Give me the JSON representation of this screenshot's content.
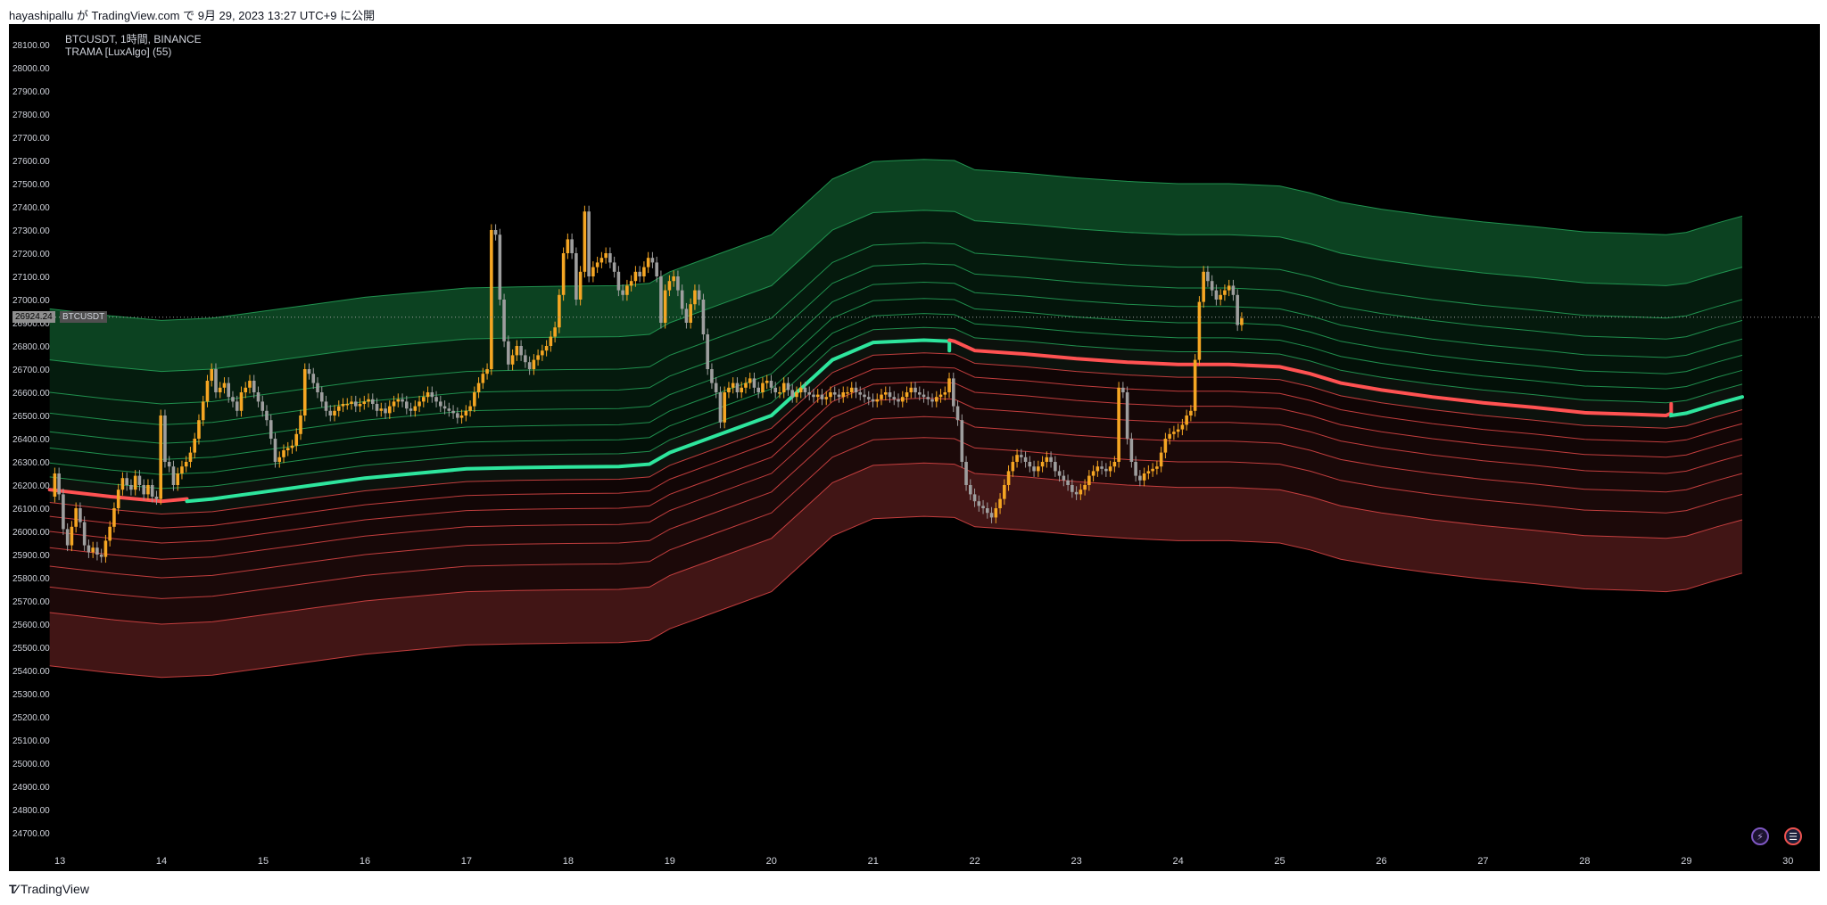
{
  "header": {
    "published": "hayashipallu が TradingView.com で 9月 29, 2023 13:27 UTC+9 に公開"
  },
  "legend": {
    "symbol_line": "BTCUSDT, 1時間, BINANCE",
    "indicator_line": "TRAMA [LuxAlgo] (55)"
  },
  "price_tag": {
    "value": "26924.24",
    "symbol": "BTCUSDT"
  },
  "footer": {
    "brand": "TradingView"
  },
  "badges": {
    "flash_icon": "lightning-icon",
    "flag_icon": "us-flag-icon"
  },
  "colors": {
    "background": "#000000",
    "text": "#d1d4dc",
    "candle_up": "#f5a623",
    "candle_down": "#9e9e9e",
    "trend_bull": "#2ee59d",
    "trend_bear": "#ff5252",
    "band_bull": "#26a65b",
    "band_bear": "#e04848",
    "fill_bull": "#0e4d27",
    "fill_bear": "#4c1919"
  },
  "chart_data": {
    "type": "line",
    "title": "BTCUSDT, 1時間, BINANCE",
    "indicator": "TRAMA [LuxAlgo] (55)",
    "ylim": [
      24650,
      28150
    ],
    "yticks": [
      24700,
      24800,
      24900,
      25000,
      25100,
      25200,
      25300,
      25400,
      25500,
      25600,
      25700,
      25800,
      25900,
      26000,
      26100,
      26200,
      26300,
      26400,
      26500,
      26600,
      26700,
      26800,
      26900,
      27000,
      27100,
      27200,
      27300,
      27400,
      27500,
      27600,
      27700,
      27800,
      27900,
      28000,
      28100
    ],
    "xlim": [
      12.85,
      30.05
    ],
    "xticks": [
      "13",
      "14",
      "15",
      "16",
      "17",
      "18",
      "19",
      "20",
      "21",
      "22",
      "23",
      "24",
      "25",
      "26",
      "27",
      "28",
      "29",
      "30"
    ],
    "last_price": 26924.24,
    "trama": {
      "x": [
        12.9,
        13.5,
        14.0,
        14.5,
        15.0,
        15.5,
        16.0,
        16.5,
        17.0,
        17.5,
        18.0,
        18.5,
        18.8,
        19.0,
        19.5,
        20.0,
        20.3,
        20.6,
        21.0,
        21.5,
        21.8,
        22.0,
        22.5,
        23.0,
        23.5,
        24.0,
        24.5,
        25.0,
        25.3,
        25.6,
        26.0,
        26.5,
        27.0,
        27.5,
        28.0,
        28.5,
        28.8,
        29.0,
        29.3,
        29.55
      ],
      "y": [
        26180,
        26150,
        26130,
        26140,
        26170,
        26200,
        26230,
        26250,
        26270,
        26275,
        26278,
        26280,
        26290,
        26340,
        26420,
        26500,
        26620,
        26740,
        26815,
        26825,
        26820,
        26780,
        26765,
        26745,
        26730,
        26720,
        26720,
        26710,
        26680,
        26640,
        26610,
        26580,
        26555,
        26535,
        26512,
        26505,
        26500,
        26510,
        26550,
        26580
      ],
      "bull_from": 14.25,
      "bear_from": 21.75,
      "bull_again_from": 28.85
    },
    "band_offsets": [
      -760,
      -530,
      -420,
      -330,
      -250,
      -180,
      -115,
      -55,
      55,
      115,
      180,
      250,
      330,
      420,
      560,
      780
    ],
    "candles": {
      "x_start": 12.95,
      "x_step": 0.0417,
      "close": [
        26250,
        26160,
        26010,
        25940,
        26020,
        26100,
        26040,
        25940,
        25910,
        25930,
        25900,
        25890,
        25960,
        26020,
        26100,
        26180,
        26230,
        26200,
        26180,
        26240,
        26200,
        26160,
        26200,
        26150,
        26140,
        26500,
        26300,
        26280,
        26200,
        26250,
        26280,
        26300,
        26340,
        26400,
        26480,
        26560,
        26650,
        26700,
        26600,
        26620,
        26640,
        26580,
        26560,
        26520,
        26600,
        26620,
        26650,
        26600,
        26560,
        26520,
        26480,
        26400,
        26300,
        26320,
        26350,
        26360,
        26370,
        26420,
        26500,
        26700,
        26680,
        26640,
        26600,
        26560,
        26520,
        26500,
        26520,
        26540,
        26550,
        26550,
        26560,
        26540,
        26550,
        26560,
        26570,
        26550,
        26520,
        26530,
        26510,
        26540,
        26560,
        26570,
        26560,
        26530,
        26520,
        26540,
        26560,
        26580,
        26600,
        26580,
        26560,
        26540,
        26530,
        26520,
        26510,
        26490,
        26500,
        26520,
        26540,
        26600,
        26640,
        26680,
        26700,
        27300,
        27280,
        27000,
        26820,
        26720,
        26760,
        26800,
        26760,
        26730,
        26700,
        26740,
        26760,
        26780,
        26800,
        26840,
        26880,
        27020,
        27200,
        27260,
        27200,
        27000,
        27120,
        27380,
        27100,
        27140,
        27160,
        27180,
        27200,
        27160,
        27120,
        27040,
        27020,
        27060,
        27080,
        27120,
        27100,
        27140,
        27180,
        27160,
        27100,
        26900,
        27040,
        27080,
        27100,
        27040,
        26960,
        26900,
        26980,
        27040,
        27000,
        26850,
        26700,
        26640,
        26600,
        26470,
        26600,
        26620,
        26640,
        26600,
        26620,
        26640,
        26660,
        26620,
        26600,
        26640,
        26650,
        26620,
        26600,
        26600,
        26640,
        26610,
        26580,
        26600,
        26620,
        26600,
        26590,
        26580,
        26590,
        26570,
        26580,
        26600,
        26590,
        26580,
        26600,
        26600,
        26620,
        26600,
        26590,
        26580,
        26570,
        26560,
        26570,
        26590,
        26600,
        26580,
        26570,
        26560,
        26580,
        26600,
        26620,
        26600,
        26590,
        26580,
        26570,
        26560,
        26580,
        26590,
        26600,
        26660,
        26540,
        26480,
        26300,
        26200,
        26160,
        26130,
        26110,
        26100,
        26080,
        26060,
        26100,
        26140,
        26200,
        26260,
        26300,
        26330,
        26320,
        26300,
        26280,
        26260,
        26280,
        26300,
        26320,
        26300,
        26260,
        26240,
        26220,
        26200,
        26170,
        26160,
        26180,
        26200,
        26240,
        26260,
        26280,
        26270,
        26260,
        26280,
        26300,
        26620,
        26600,
        26400,
        26300,
        26240,
        26220,
        26250,
        26260,
        26270,
        26280,
        26340,
        26400,
        26420,
        26430,
        26440,
        26460,
        26500,
        26520,
        26740,
        26990,
        27120,
        27080,
        27040,
        27000,
        27020,
        27040,
        27060,
        27020,
        26890,
        26920
      ],
      "open": [
        26150,
        26250,
        26160,
        26010,
        25940,
        26020,
        26100,
        26040,
        25940,
        25910,
        25930,
        25900,
        25890,
        25960,
        26020,
        26100,
        26180,
        26230,
        26200,
        26180,
        26240,
        26200,
        26160,
        26200,
        26150,
        26140,
        26500,
        26300,
        26280,
        26200,
        26250,
        26280,
        26300,
        26340,
        26400,
        26480,
        26560,
        26650,
        26700,
        26600,
        26620,
        26640,
        26580,
        26560,
        26520,
        26600,
        26620,
        26650,
        26600,
        26560,
        26520,
        26480,
        26400,
        26300,
        26320,
        26350,
        26360,
        26370,
        26420,
        26500,
        26700,
        26680,
        26640,
        26600,
        26560,
        26520,
        26500,
        26520,
        26540,
        26550,
        26550,
        26560,
        26540,
        26550,
        26560,
        26570,
        26550,
        26520,
        26530,
        26510,
        26540,
        26560,
        26570,
        26560,
        26530,
        26520,
        26540,
        26560,
        26580,
        26600,
        26580,
        26560,
        26540,
        26530,
        26520,
        26510,
        26490,
        26500,
        26520,
        26540,
        26600,
        26640,
        26680,
        26700,
        27300,
        27280,
        27000,
        26820,
        26720,
        26760,
        26800,
        26760,
        26730,
        26700,
        26740,
        26760,
        26780,
        26800,
        26840,
        26880,
        27020,
        27200,
        27260,
        27200,
        27000,
        27120,
        27380,
        27100,
        27140,
        27160,
        27180,
        27200,
        27160,
        27120,
        27040,
        27020,
        27060,
        27080,
        27120,
        27100,
        27140,
        27180,
        27160,
        27100,
        26900,
        27040,
        27080,
        27100,
        27040,
        26960,
        26900,
        26980,
        27040,
        27000,
        26850,
        26700,
        26640,
        26600,
        26470,
        26600,
        26620,
        26640,
        26600,
        26620,
        26640,
        26660,
        26620,
        26600,
        26640,
        26650,
        26620,
        26600,
        26600,
        26640,
        26610,
        26580,
        26600,
        26620,
        26600,
        26590,
        26580,
        26590,
        26570,
        26580,
        26600,
        26590,
        26580,
        26600,
        26600,
        26620,
        26600,
        26590,
        26580,
        26570,
        26560,
        26570,
        26590,
        26600,
        26580,
        26570,
        26560,
        26580,
        26600,
        26620,
        26600,
        26590,
        26580,
        26570,
        26560,
        26580,
        26590,
        26600,
        26660,
        26540,
        26480,
        26300,
        26200,
        26160,
        26130,
        26110,
        26100,
        26080,
        26060,
        26100,
        26140,
        26200,
        26260,
        26300,
        26330,
        26320,
        26300,
        26280,
        26260,
        26280,
        26300,
        26320,
        26300,
        26260,
        26240,
        26220,
        26200,
        26170,
        26160,
        26180,
        26200,
        26240,
        26260,
        26280,
        26270,
        26260,
        26280,
        26300,
        26620,
        26600,
        26400,
        26300,
        26240,
        26220,
        26250,
        26260,
        26270,
        26280,
        26340,
        26400,
        26420,
        26430,
        26440,
        26460,
        26500,
        26520,
        26740,
        26990,
        27120,
        27080,
        27040,
        27000,
        27020,
        27040,
        27060,
        27020,
        26890
      ]
    }
  }
}
